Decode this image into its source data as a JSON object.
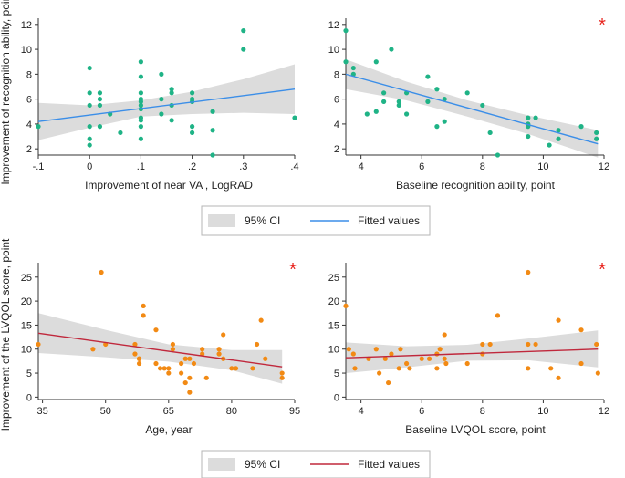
{
  "figure": {
    "ylabel_top": "Improvement of recognition ability, point",
    "ylabel_bottom": "Improvement of the LVQOL score, point",
    "legend_top": {
      "ci_label": "95% CI",
      "fit_label": "Fitted values",
      "fit_color": "#3b8ee8"
    },
    "legend_bottom": {
      "ci_label": "95% CI",
      "fit_label": "Fitted values",
      "fit_color": "#c0283c"
    },
    "star": "*"
  },
  "chart_data": [
    {
      "id": "p1",
      "type": "scatter",
      "xlabel": "Improvement of near VA , LogRAD",
      "xlim": [
        -0.1,
        0.4
      ],
      "ylim": [
        1.5,
        12.5
      ],
      "xticks": [
        -0.1,
        0,
        0.1,
        0.2,
        0.3,
        0.4
      ],
      "xtick_labels": [
        "-.1",
        "0",
        ".1",
        ".2",
        ".3",
        ".4"
      ],
      "yticks": [
        2,
        4,
        6,
        8,
        10,
        12
      ],
      "point_color": "#1fb386",
      "line_color": "#3b8ee8",
      "star": false,
      "fit": {
        "x": [
          -0.1,
          0.4
        ],
        "y": [
          4.2,
          6.8
        ]
      },
      "ci": {
        "x": [
          -0.1,
          0.0,
          0.1,
          0.2,
          0.3,
          0.4
        ],
        "upper": [
          5.7,
          5.5,
          5.9,
          6.6,
          7.6,
          8.8
        ],
        "lower": [
          2.7,
          3.7,
          4.6,
          4.8,
          4.9,
          4.8
        ]
      },
      "points": {
        "x": [
          -0.1,
          0,
          0,
          0,
          0,
          0,
          0,
          0.02,
          0.02,
          0.02,
          0.02,
          0.04,
          0.06,
          0.1,
          0.1,
          0.1,
          0.1,
          0.1,
          0.1,
          0.1,
          0.1,
          0.1,
          0.1,
          0.1,
          0.14,
          0.14,
          0.14,
          0.16,
          0.16,
          0.16,
          0.16,
          0.2,
          0.2,
          0.2,
          0.2,
          0.2,
          0.24,
          0.24,
          0.24,
          0.3,
          0.3,
          0.4
        ],
        "y": [
          3.8,
          8.5,
          6.5,
          5.5,
          3.8,
          2.8,
          2.3,
          6.5,
          6.0,
          5.5,
          3.8,
          4.8,
          3.3,
          9.0,
          7.8,
          6.5,
          6.0,
          5.8,
          5.5,
          5.2,
          4.5,
          4.3,
          3.8,
          2.8,
          8.0,
          6.0,
          4.8,
          6.8,
          6.5,
          5.5,
          4.3,
          6.5,
          6.0,
          5.8,
          3.8,
          3.3,
          5.0,
          3.5,
          1.5,
          11.5,
          10.0,
          4.5
        ]
      }
    },
    {
      "id": "p2",
      "type": "scatter",
      "xlabel": "Baseline recognition ability, point",
      "xlim": [
        3.5,
        12
      ],
      "ylim": [
        1.5,
        12.5
      ],
      "xticks": [
        4,
        6,
        8,
        10,
        12
      ],
      "xtick_labels": [
        "4",
        "6",
        "8",
        "10",
        "12"
      ],
      "yticks": [
        2,
        4,
        6,
        8,
        10,
        12
      ],
      "point_color": "#1fb386",
      "line_color": "#3b8ee8",
      "star": true,
      "fit": {
        "x": [
          3.5,
          11.8
        ],
        "y": [
          8.0,
          2.4
        ]
      },
      "ci": {
        "x": [
          3.5,
          5.5,
          7.5,
          9.5,
          11.8
        ],
        "upper": [
          9.2,
          7.4,
          5.9,
          4.7,
          3.5
        ],
        "lower": [
          6.8,
          5.9,
          4.6,
          3.2,
          1.3
        ]
      },
      "points": {
        "x": [
          3.5,
          3.5,
          3.75,
          3.75,
          4.2,
          4.5,
          4.5,
          4.75,
          4.75,
          5.0,
          5.25,
          5.25,
          5.5,
          5.5,
          6.2,
          6.2,
          6.5,
          6.5,
          6.75,
          6.75,
          7.5,
          8.0,
          8.25,
          8.5,
          9.5,
          9.5,
          9.5,
          9.5,
          9.75,
          10.2,
          10.5,
          10.5,
          11.25,
          11.75,
          11.75
        ],
        "y": [
          11.5,
          9.0,
          8.5,
          8.0,
          4.8,
          9.0,
          5.0,
          6.5,
          5.8,
          10.0,
          5.8,
          5.5,
          6.5,
          4.8,
          7.8,
          5.8,
          6.8,
          3.8,
          6.0,
          4.2,
          6.5,
          5.5,
          3.3,
          1.5,
          4.5,
          4.0,
          3.8,
          3.0,
          4.5,
          2.3,
          3.5,
          2.8,
          3.8,
          3.3,
          2.8
        ]
      }
    },
    {
      "id": "p3",
      "type": "scatter",
      "xlabel": "Age, year",
      "xlim": [
        34,
        95
      ],
      "ylim": [
        -0.5,
        28
      ],
      "xticks": [
        35,
        50,
        65,
        80,
        95
      ],
      "xtick_labels": [
        "35",
        "50",
        "65",
        "80",
        "95"
      ],
      "yticks": [
        0,
        5,
        10,
        15,
        20,
        25
      ],
      "point_color": "#f28a14",
      "line_color": "#c0283c",
      "star": true,
      "fit": {
        "x": [
          34,
          92
        ],
        "y": [
          13.3,
          6.3
        ]
      },
      "ci": {
        "x": [
          34,
          50,
          65,
          80,
          92
        ],
        "upper": [
          17.5,
          14.0,
          11.0,
          9.8,
          9.8
        ],
        "lower": [
          9.2,
          8.3,
          7.4,
          5.6,
          2.8
        ]
      },
      "points": {
        "x": [
          34,
          47,
          49,
          50,
          57,
          57,
          58,
          58,
          58,
          59,
          59,
          62,
          62,
          63,
          64,
          65,
          65,
          66,
          66,
          68,
          68,
          69,
          69,
          70,
          70,
          70,
          71,
          73,
          73,
          74,
          77,
          77,
          78,
          78,
          80,
          81,
          85,
          86,
          87,
          88,
          92,
          92
        ],
        "y": [
          11,
          10,
          26,
          11,
          9,
          11,
          7,
          8,
          8,
          19,
          17,
          7,
          14,
          6,
          6,
          6,
          5,
          11,
          10,
          7,
          5,
          8,
          3,
          1,
          4,
          8,
          7,
          10,
          9,
          4,
          10,
          9,
          8,
          13,
          6,
          6,
          6,
          11,
          16,
          8,
          5,
          4
        ]
      }
    },
    {
      "id": "p4",
      "type": "scatter",
      "xlabel": "Baseline LVQOL score, point",
      "xlim": [
        3.5,
        12
      ],
      "ylim": [
        -0.5,
        28
      ],
      "xticks": [
        4,
        6,
        8,
        10,
        12
      ],
      "xtick_labels": [
        "4",
        "6",
        "8",
        "10",
        "12"
      ],
      "yticks": [
        0,
        5,
        10,
        15,
        20,
        25
      ],
      "point_color": "#f28a14",
      "line_color": "#c0283c",
      "star": true,
      "fit": {
        "x": [
          3.5,
          11.8
        ],
        "y": [
          8.2,
          10.0
        ]
      },
      "ci": {
        "x": [
          3.5,
          5.5,
          7.5,
          9.5,
          11.8
        ],
        "upper": [
          11.4,
          10.6,
          10.9,
          12.2,
          13.9
        ],
        "lower": [
          5.0,
          6.2,
          7.6,
          7.7,
          6.2
        ]
      },
      "points": {
        "x": [
          3.5,
          3.6,
          3.75,
          3.8,
          4.25,
          4.5,
          4.6,
          4.8,
          4.9,
          5.0,
          5.25,
          5.3,
          5.5,
          5.6,
          6.0,
          6.25,
          6.5,
          6.5,
          6.6,
          6.75,
          6.75,
          6.8,
          7.5,
          8.0,
          8.0,
          8.25,
          8.5,
          9.5,
          9.5,
          9.5,
          9.75,
          10.25,
          10.5,
          10.5,
          11.25,
          11.25,
          11.75,
          11.8
        ],
        "y": [
          19,
          10,
          9,
          6,
          8,
          10,
          5,
          8,
          3,
          9,
          6,
          10,
          7,
          6,
          8,
          8,
          9,
          6,
          10,
          13,
          8,
          7,
          7,
          11,
          9,
          11,
          17,
          26,
          11,
          6,
          11,
          6,
          16,
          4,
          14,
          7,
          11,
          5
        ]
      }
    }
  ]
}
